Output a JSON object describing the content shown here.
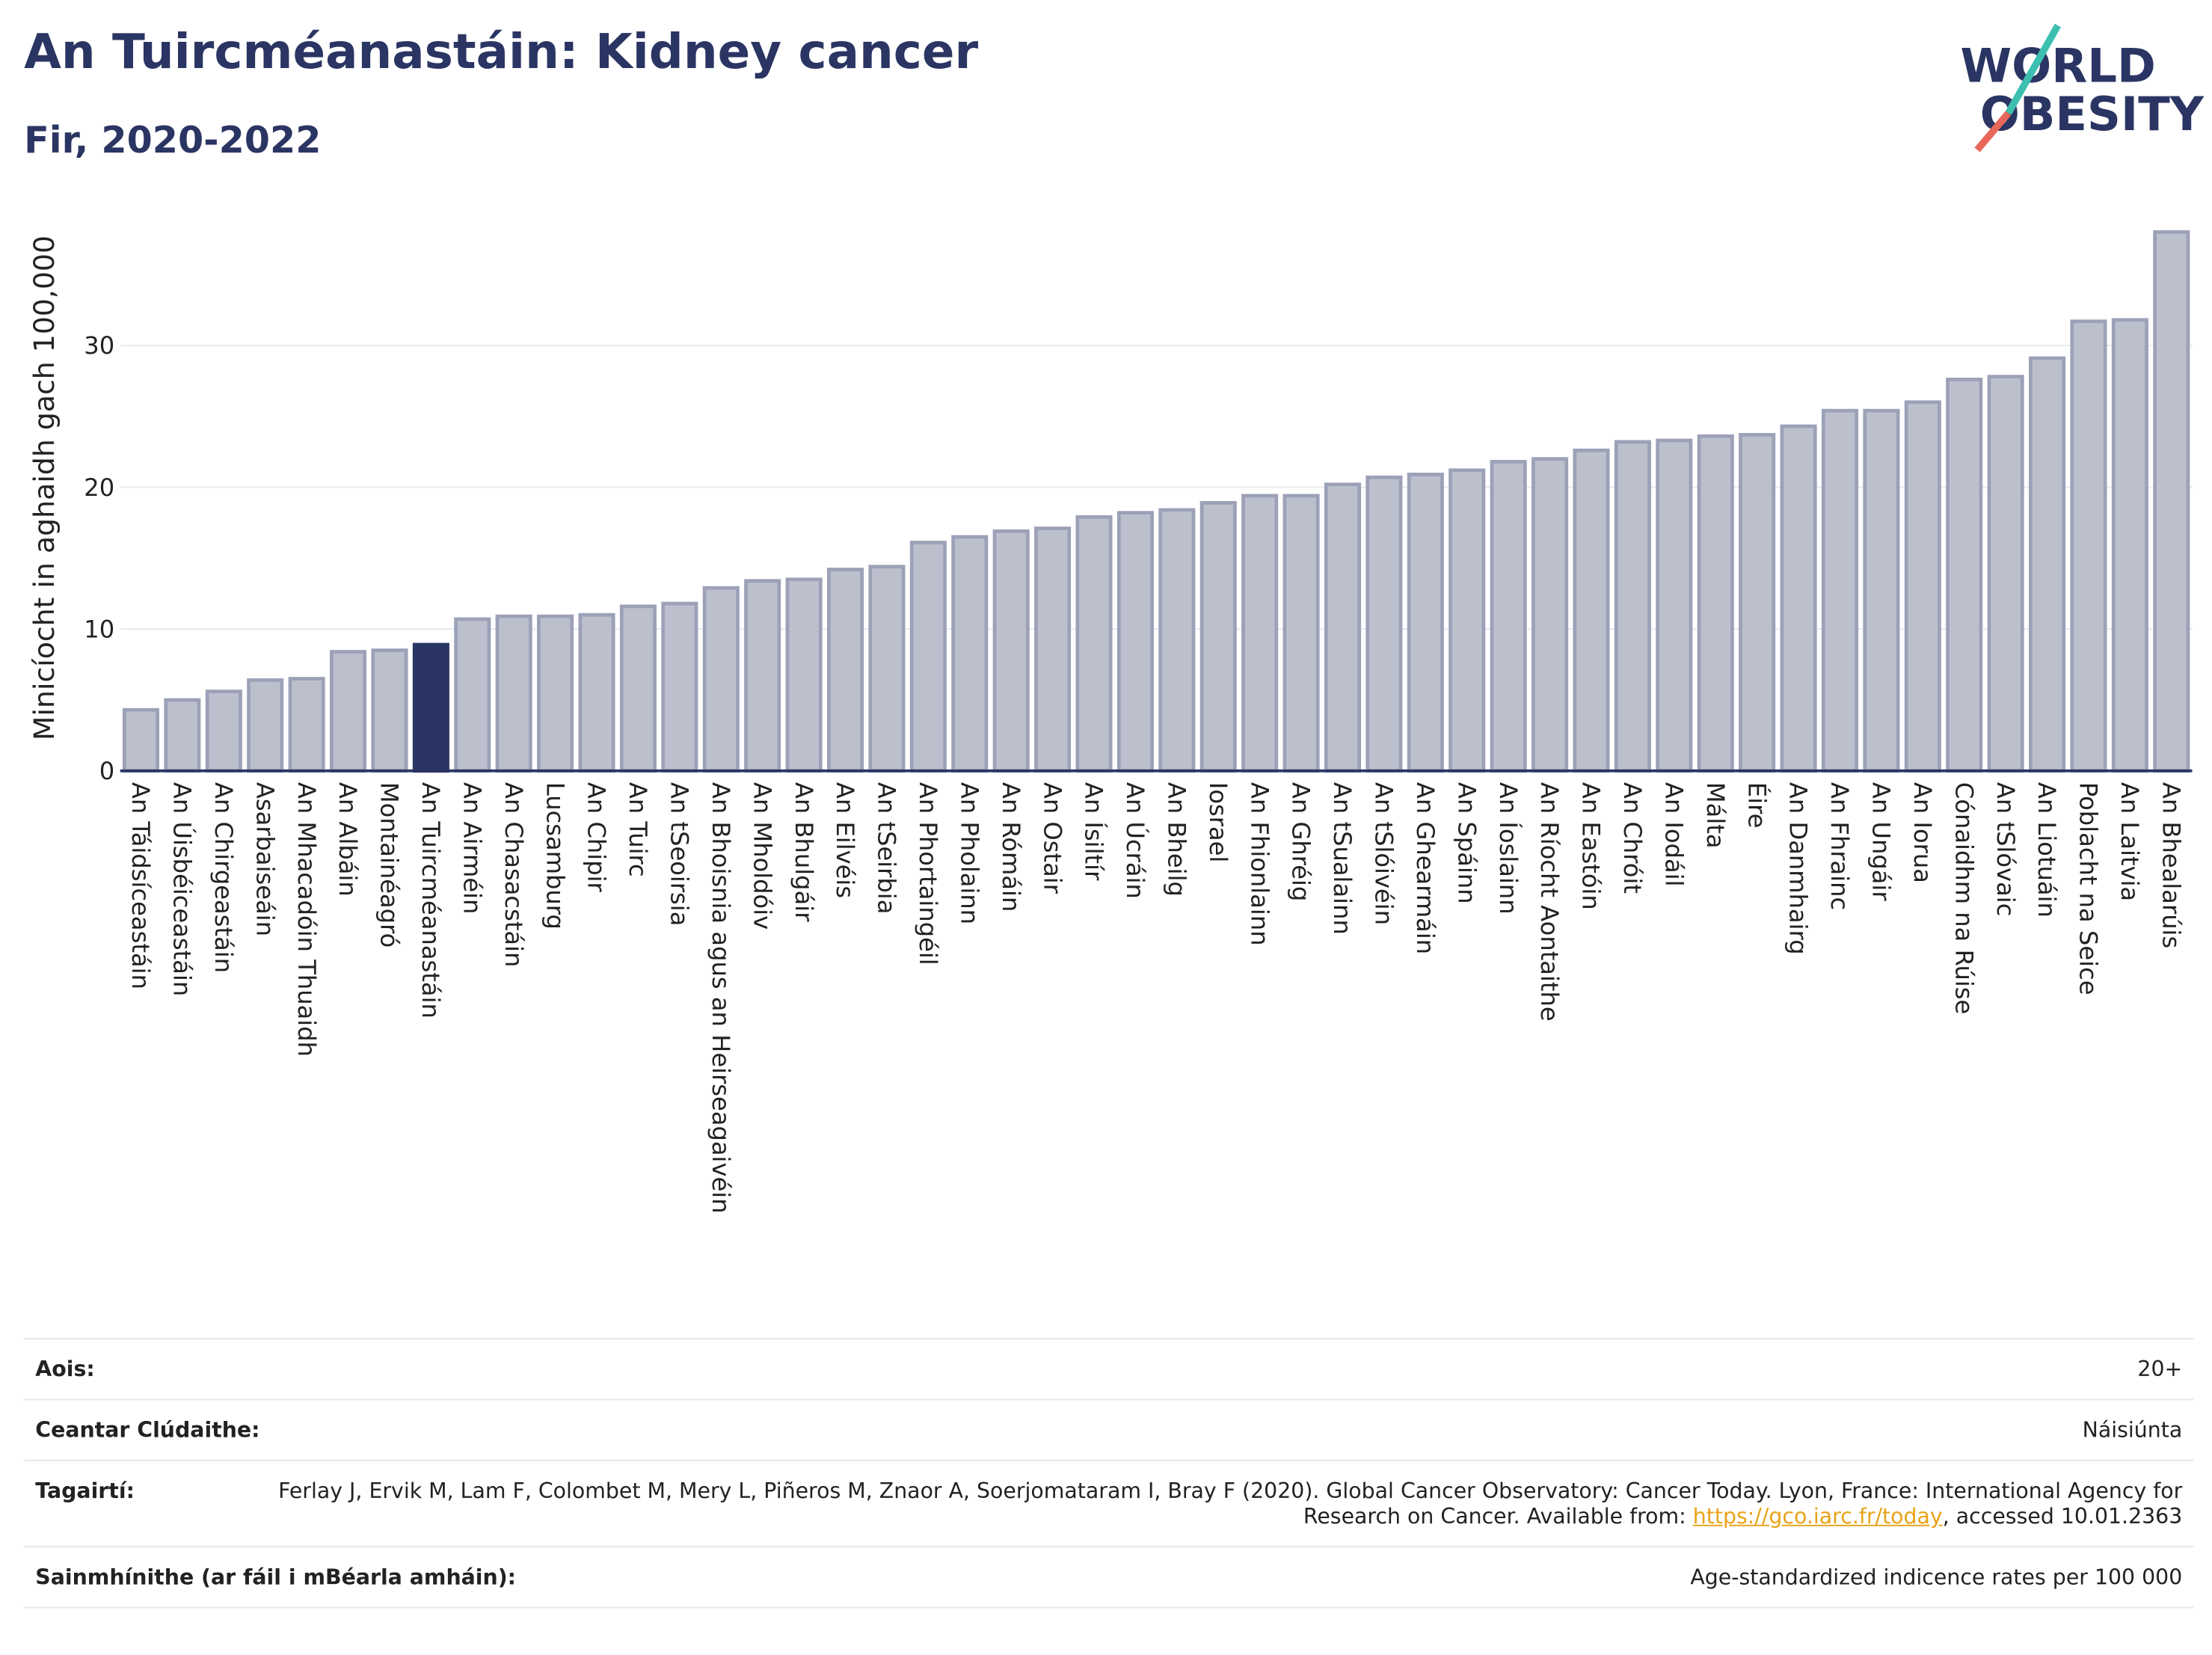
{
  "chart_data": {
    "type": "bar",
    "title": "An Tuircméanastáin: Kidney cancer",
    "subtitle": "Fir, 2020-2022",
    "y_label": "Minicíocht in aghaidh gach 100,000",
    "categories": [
      "An Táidsíceastáin",
      "An Úisbéiceastáin",
      "An Chirgeastáin",
      "Asarbaiseáin",
      "An Mhacadóin Thuaidh",
      "An Albáin",
      "Montainéagró",
      "An Tuircméanastáin",
      "An Airméin",
      "An Chasacstáin",
      "Lucsamburg",
      "An Chipir",
      "An Tuirc",
      "An tSeoirsia",
      "An Bhoisnia agus an Heirseagaivéin",
      "An Mholdóiv",
      "An Bhulgáir",
      "An Eilvéis",
      "An tSeirbia",
      "An Phortaingéil",
      "An Pholainn",
      "An Rómáin",
      "An Ostair",
      "An Ísiltír",
      "An Úcráin",
      "An Bheilg",
      "Iosrael",
      "An Fhionlainn",
      "An Ghréig",
      "An tSualainn",
      "An tSlóivéin",
      "An Ghearmáin",
      "An Spáinn",
      "An Íoslainn",
      "An Ríocht Aontaithe",
      "An Eastóin",
      "An Chróit",
      "An Iodáil",
      "Málta",
      "Éire",
      "An Danmhairg",
      "An Fhrainc",
      "An Ungáir",
      "An Iorua",
      "Cónaidhm na Rúise",
      "An tSlóvaic",
      "An Liotuáin",
      "Poblacht na Seice",
      "An Laitvia",
      "An Bhealarúis"
    ],
    "values": [
      4.3,
      5.0,
      5.6,
      6.4,
      6.5,
      8.4,
      8.5,
      8.9,
      10.7,
      10.9,
      10.9,
      11.0,
      11.6,
      11.8,
      12.9,
      13.4,
      13.5,
      14.2,
      14.4,
      16.1,
      16.5,
      16.9,
      17.1,
      17.9,
      18.2,
      18.4,
      18.9,
      19.4,
      19.4,
      20.2,
      20.7,
      20.9,
      21.2,
      21.8,
      22.0,
      22.6,
      23.2,
      23.3,
      23.6,
      23.7,
      24.3,
      25.4,
      25.4,
      26.0,
      27.6,
      27.8,
      29.1,
      31.7,
      31.8,
      38.0
    ],
    "colors": [
      "#bcc0cd",
      "#bcc0cd",
      "#bcc0cd",
      "#bcc0cd",
      "#bcc0cd",
      "#bcc0cd",
      "#bcc0cd",
      "#2b3563",
      "#bcc0cd",
      "#bcc0cd",
      "#bcc0cd",
      "#bcc0cd",
      "#bcc0cd",
      "#bcc0cd",
      "#bcc0cd",
      "#bcc0cd",
      "#bcc0cd",
      "#bcc0cd",
      "#bcc0cd",
      "#bcc0cd",
      "#bcc0cd",
      "#bcc0cd",
      "#bcc0cd",
      "#bcc0cd",
      "#bcc0cd",
      "#bcc0cd",
      "#bcc0cd",
      "#bcc0cd",
      "#bcc0cd",
      "#bcc0cd",
      "#bcc0cd",
      "#bcc0cd",
      "#bcc0cd",
      "#bcc0cd",
      "#bcc0cd",
      "#bcc0cd",
      "#bcc0cd",
      "#bcc0cd",
      "#bcc0cd",
      "#bcc0cd",
      "#bcc0cd",
      "#bcc0cd",
      "#bcc0cd",
      "#bcc0cd",
      "#bcc0cd",
      "#bcc0cd",
      "#bcc0cd",
      "#bcc0cd",
      "#bcc0cd",
      "#bcc0cd"
    ],
    "ylim": [
      0,
      38.5
    ],
    "yticks": [
      0,
      10,
      20,
      30
    ],
    "grid": true
  },
  "logo": {
    "line1": "WORLD",
    "line2": "OBESITY"
  },
  "footer": {
    "rows": [
      {
        "label": "Aois:",
        "value": "20+"
      },
      {
        "label": "Ceantar Clúdaithe:",
        "value": "Náisiúnta"
      },
      {
        "label": "Tagairtí:",
        "text": "Ferlay J, Ervik M, Lam F, Colombet M, Mery L, Piñeros M, Znaor A, Soerjomataram I, Bray F (2020). Global Cancer Observatory: Cancer Today. Lyon, France: International Agency for Research on Cancer. Available from: ",
        "link": "https://gco.iarc.fr/today",
        "after": ", accessed 10.01.2363"
      },
      {
        "label": "Sainmhínithe (ar fáil i mBéarla amháin):",
        "value": "Age-standardized indicence rates per 100 000"
      }
    ]
  }
}
